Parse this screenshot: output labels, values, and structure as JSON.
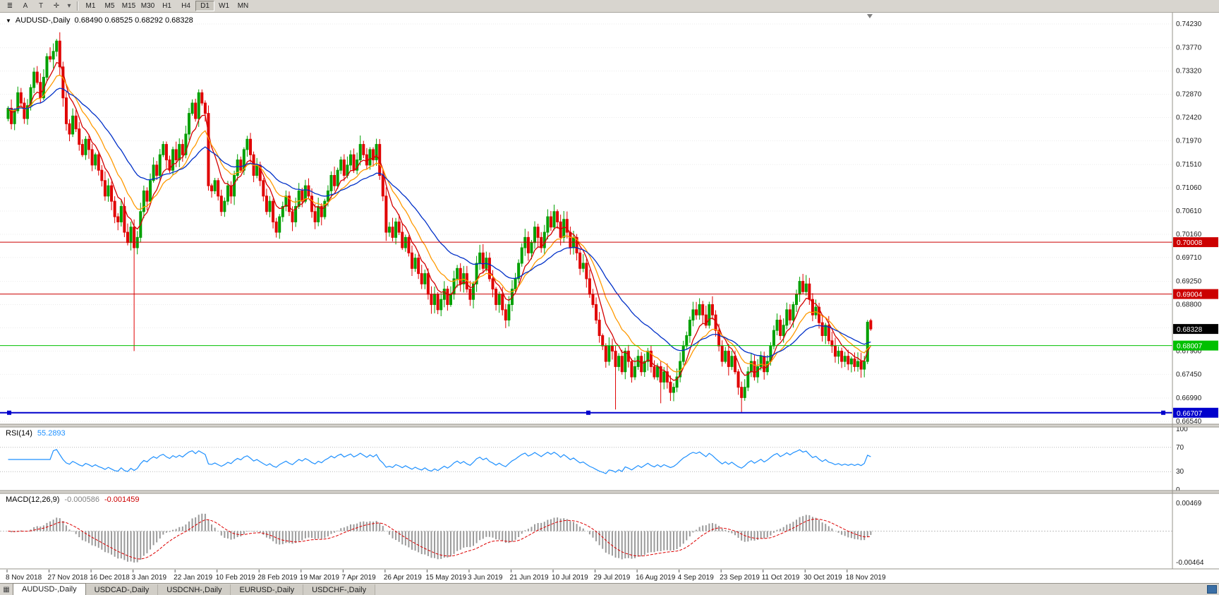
{
  "toolbar": {
    "icons": {
      "menu": "≣",
      "pointer": "A",
      "text_tool": "T",
      "objects": "✛",
      "caret": "▾"
    },
    "periods": [
      "M1",
      "M5",
      "M15",
      "M30",
      "H1",
      "H4",
      "D1",
      "W1",
      "MN"
    ],
    "active_period": "D1"
  },
  "main_header": {
    "collapse": "▼",
    "title": "AUDUSD-,Daily",
    "ohlc": "0.68490 0.68525 0.68292 0.68328"
  },
  "rsi_header": {
    "name": "RSI(14)",
    "value": "55.2893"
  },
  "macd_header": {
    "name": "MACD(12,26,9)",
    "value1": "-0.000586",
    "value2": "-0.001459"
  },
  "tabs": [
    {
      "label": "AUDUSD-,Daily",
      "active": true
    },
    {
      "label": "USDCAD-,Daily",
      "active": false
    },
    {
      "label": "USDCNH-,Daily",
      "active": false
    },
    {
      "label": "EURUSD-,Daily",
      "active": false
    },
    {
      "label": "USDCHF-,Daily",
      "active": false
    }
  ],
  "tab_corner_glyph": "▦",
  "colors": {
    "candle_up": "#00a000",
    "candle_down": "#e00000",
    "ma_fast_red": "#d40000",
    "ma_mid_orange": "#ff9900",
    "ma_slow_blue": "#0030c8",
    "rsi_line": "#1e90ff",
    "macd_hist": "#9a9a9a",
    "macd_signal": "#dd0000",
    "hline_red": "#cc0000",
    "hline_green": "#00c000",
    "hline_blue": "#0000cc",
    "price_tag_bg": "#000000",
    "grid": "#ebebeb",
    "panel_chrome": "#d6d3ce"
  },
  "chart_data": {
    "type": "candlestick",
    "title": "AUDUSD-,Daily",
    "symbol": "AUDUSD",
    "timeframe": "Daily",
    "current_ohlc": {
      "open": 0.6849,
      "high": 0.68525,
      "low": 0.68292,
      "close": 0.68328
    },
    "price_axis": {
      "decimals": 5,
      "labels": [
        0.7423,
        0.7377,
        0.7332,
        0.7287,
        0.7242,
        0.7197,
        0.7151,
        0.7106,
        0.7061,
        0.7016,
        0.6971,
        0.6925,
        0.688,
        0.6835,
        0.679,
        0.6745,
        0.6699,
        0.6654
      ]
    },
    "date_ticks": [
      {
        "i": 0,
        "label": "8 Nov 2018"
      },
      {
        "i": 13,
        "label": "27 Nov 2018"
      },
      {
        "i": 26,
        "label": "16 Dec 2018"
      },
      {
        "i": 39,
        "label": "3 Jan 2019"
      },
      {
        "i": 52,
        "label": "22 Jan 2019"
      },
      {
        "i": 65,
        "label": "10 Feb 2019"
      },
      {
        "i": 78,
        "label": "28 Feb 2019"
      },
      {
        "i": 91,
        "label": "19 Mar 2019"
      },
      {
        "i": 104,
        "label": "7 Apr 2019"
      },
      {
        "i": 117,
        "label": "26 Apr 2019"
      },
      {
        "i": 130,
        "label": "15 May 2019"
      },
      {
        "i": 143,
        "label": "3 Jun 2019"
      },
      {
        "i": 156,
        "label": "21 Jun 2019"
      },
      {
        "i": 169,
        "label": "10 Jul 2019"
      },
      {
        "i": 182,
        "label": "29 Jul 2019"
      },
      {
        "i": 195,
        "label": "16 Aug 2019"
      },
      {
        "i": 208,
        "label": "4 Sep 2019"
      },
      {
        "i": 221,
        "label": "23 Sep 2019"
      },
      {
        "i": 234,
        "label": "11 Oct 2019"
      },
      {
        "i": 247,
        "label": "30 Oct 2019"
      },
      {
        "i": 260,
        "label": "18 Nov 2019"
      }
    ],
    "hlines": [
      {
        "value": 0.70008,
        "label": "0.70008",
        "color": "#cc0000",
        "width": 1,
        "handles": false
      },
      {
        "value": 0.69004,
        "label": "0.69004",
        "color": "#cc0000",
        "width": 1,
        "handles": false
      },
      {
        "value": 0.68007,
        "label": "0.68007",
        "color": "#00c000",
        "width": 1,
        "handles": false
      },
      {
        "value": 0.66707,
        "label": "0.66707",
        "color": "#0000cc",
        "width": 2,
        "handles": true
      }
    ],
    "price_tag": {
      "value": 0.68328,
      "label": "0.68328"
    },
    "candles": {
      "first_open": 0.724,
      "closes": [
        0.726,
        0.723,
        0.7255,
        0.729,
        0.727,
        0.724,
        0.7265,
        0.73,
        0.733,
        0.731,
        0.728,
        0.732,
        0.736,
        0.7355,
        0.737,
        0.739,
        0.734,
        0.728,
        0.723,
        0.721,
        0.7245,
        0.722,
        0.719,
        0.717,
        0.72,
        0.718,
        0.715,
        0.717,
        0.714,
        0.712,
        0.709,
        0.711,
        0.708,
        0.705,
        0.704,
        0.707,
        0.702,
        0.7,
        0.703,
        0.699,
        0.701,
        0.706,
        0.71,
        0.708,
        0.712,
        0.715,
        0.713,
        0.717,
        0.719,
        0.716,
        0.714,
        0.718,
        0.716,
        0.719,
        0.717,
        0.721,
        0.725,
        0.727,
        0.724,
        0.729,
        0.727,
        0.725,
        0.711,
        0.71,
        0.712,
        0.709,
        0.706,
        0.708,
        0.711,
        0.709,
        0.713,
        0.716,
        0.714,
        0.718,
        0.72,
        0.717,
        0.713,
        0.715,
        0.712,
        0.709,
        0.706,
        0.708,
        0.704,
        0.702,
        0.705,
        0.707,
        0.709,
        0.706,
        0.704,
        0.707,
        0.71,
        0.708,
        0.711,
        0.709,
        0.706,
        0.704,
        0.707,
        0.705,
        0.708,
        0.71,
        0.713,
        0.711,
        0.714,
        0.716,
        0.713,
        0.715,
        0.717,
        0.714,
        0.716,
        0.719,
        0.717,
        0.715,
        0.718,
        0.716,
        0.719,
        0.713,
        0.709,
        0.702,
        0.703,
        0.701,
        0.704,
        0.702,
        0.699,
        0.701,
        0.698,
        0.695,
        0.697,
        0.694,
        0.692,
        0.694,
        0.69,
        0.688,
        0.69,
        0.687,
        0.689,
        0.691,
        0.688,
        0.69,
        0.693,
        0.695,
        0.692,
        0.694,
        0.691,
        0.689,
        0.692,
        0.696,
        0.698,
        0.695,
        0.697,
        0.693,
        0.691,
        0.688,
        0.69,
        0.687,
        0.685,
        0.688,
        0.691,
        0.693,
        0.696,
        0.699,
        0.701,
        0.698,
        0.7,
        0.703,
        0.701,
        0.699,
        0.702,
        0.705,
        0.703,
        0.706,
        0.704,
        0.701,
        0.7045,
        0.702,
        0.699,
        0.701,
        0.698,
        0.695,
        0.696,
        0.693,
        0.69,
        0.688,
        0.685,
        0.682,
        0.68,
        0.677,
        0.68,
        0.679,
        0.676,
        0.678,
        0.675,
        0.679,
        0.677,
        0.674,
        0.676,
        0.678,
        0.675,
        0.677,
        0.679,
        0.676,
        0.674,
        0.676,
        0.673,
        0.675,
        0.673,
        0.671,
        0.672,
        0.674,
        0.677,
        0.68,
        0.682,
        0.685,
        0.687,
        0.686,
        0.688,
        0.686,
        0.684,
        0.688,
        0.686,
        0.683,
        0.68,
        0.677,
        0.679,
        0.676,
        0.678,
        0.675,
        0.672,
        0.67,
        0.672,
        0.675,
        0.677,
        0.674,
        0.676,
        0.678,
        0.675,
        0.677,
        0.68,
        0.683,
        0.685,
        0.682,
        0.684,
        0.687,
        0.685,
        0.688,
        0.69,
        0.6925,
        0.6905,
        0.692,
        0.689,
        0.686,
        0.6875,
        0.6845,
        0.682,
        0.684,
        0.681,
        0.68,
        0.678,
        0.679,
        0.677,
        0.678,
        0.6765,
        0.6775,
        0.676,
        0.677,
        0.6755,
        0.677,
        0.6846,
        0.68328
      ],
      "overrides": {
        "15": {
          "h": 0.7394
        },
        "39": {
          "l": 0.679
        },
        "188": {
          "l": 0.6677
        },
        "202": {
          "l": 0.6689
        },
        "227": {
          "l": 0.667
        },
        "267": {
          "o": 0.6849,
          "h": 0.68525,
          "l": 0.68292
        }
      }
    },
    "moving_averages": [
      {
        "period": 7,
        "color": "#d40000"
      },
      {
        "period": 14,
        "color": "#ff9900"
      },
      {
        "period": 30,
        "color": "#0030c8"
      }
    ],
    "rsi": {
      "period": 14,
      "levels": [
        100,
        70,
        30,
        0
      ],
      "color": "#1e90ff",
      "current": "55.2893"
    },
    "macd": {
      "fast": 12,
      "slow": 26,
      "signal": 9,
      "axis_labels": [
        "0.00469",
        "-0.00464"
      ],
      "hist_color": "#9a9a9a",
      "signal_color": "#dd0000",
      "current_macd": "-0.000586",
      "current_signal": "-0.001459"
    }
  }
}
